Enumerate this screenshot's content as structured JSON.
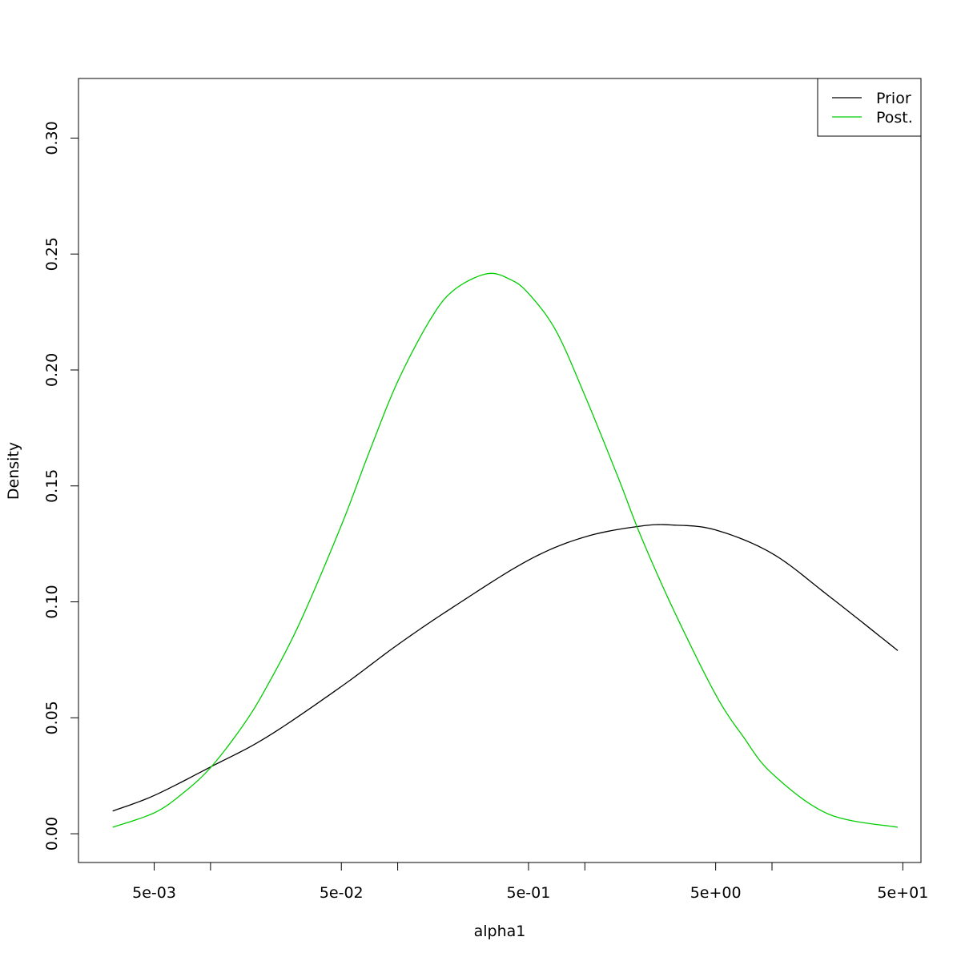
{
  "chart_data": {
    "type": "line",
    "xlabel": "alpha1",
    "ylabel": "Density",
    "x_scale": "log",
    "xlim": [
      0.00197,
      62.5
    ],
    "ylim": [
      -0.0124,
      0.3257
    ],
    "x_ticks": [
      {
        "value": 0.005,
        "label": "5e-03"
      },
      {
        "value": 0.01,
        "label": ""
      },
      {
        "value": 0.05,
        "label": "5e-02"
      },
      {
        "value": 0.1,
        "label": ""
      },
      {
        "value": 0.5,
        "label": "5e-01"
      },
      {
        "value": 1,
        "label": ""
      },
      {
        "value": 5,
        "label": "5e+00"
      },
      {
        "value": 10,
        "label": ""
      },
      {
        "value": 50,
        "label": "5e+01"
      }
    ],
    "y_ticks": [
      {
        "value": 0,
        "label": "0.00"
      },
      {
        "value": 0.05,
        "label": "0.05"
      },
      {
        "value": 0.1,
        "label": "0.10"
      },
      {
        "value": 0.15,
        "label": "0.15"
      },
      {
        "value": 0.2,
        "label": "0.20"
      },
      {
        "value": 0.25,
        "label": "0.25"
      },
      {
        "value": 0.3,
        "label": "0.30"
      }
    ],
    "legend": {
      "position": "top-right",
      "entries": [
        {
          "name": "Prior",
          "color": "#000000"
        },
        {
          "name": "Post.",
          "color": "#00cd00"
        }
      ]
    },
    "series": [
      {
        "name": "Prior",
        "color": "#000000",
        "x": [
          0.003,
          0.005,
          0.01,
          0.02,
          0.05,
          0.1,
          0.2,
          0.5,
          1,
          2,
          3,
          5,
          10,
          20,
          47
        ],
        "y": [
          0.0098,
          0.0165,
          0.0288,
          0.0417,
          0.0635,
          0.0815,
          0.098,
          0.118,
          0.128,
          0.1327,
          0.1331,
          0.131,
          0.1209,
          0.1027,
          0.079
        ]
      },
      {
        "name": "Post.",
        "color": "#00cd00",
        "x": [
          0.003,
          0.005,
          0.007,
          0.01,
          0.015,
          0.02,
          0.03,
          0.05,
          0.07,
          0.1,
          0.15,
          0.2,
          0.3,
          0.4,
          0.5,
          0.7,
          1,
          1.5,
          2,
          3,
          5,
          7,
          10,
          20,
          47
        ],
        "y": [
          0.0028,
          0.009,
          0.017,
          0.0285,
          0.047,
          0.0635,
          0.091,
          0.133,
          0.164,
          0.195,
          0.222,
          0.2345,
          0.2415,
          0.239,
          0.233,
          0.217,
          0.189,
          0.154,
          0.128,
          0.096,
          0.06,
          0.042,
          0.026,
          0.0085,
          0.0028
        ]
      }
    ]
  }
}
